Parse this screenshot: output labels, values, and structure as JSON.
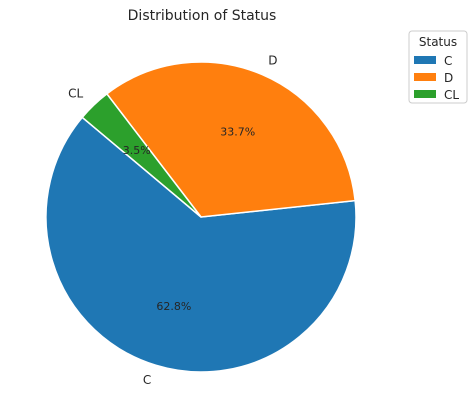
{
  "chart_data": {
    "type": "pie",
    "title": "Distribution of Status",
    "categories": [
      "C",
      "D",
      "CL"
    ],
    "values": [
      62.8,
      33.7,
      3.5
    ],
    "labels": [
      "62.8%",
      "33.7%",
      "3.5%"
    ],
    "colors": [
      "#1f77b4",
      "#ff7f0e",
      "#2ca02c"
    ],
    "start_angle_deg": 140,
    "direction": "counterclockwise",
    "legend": {
      "title": "Status",
      "placement": "top-right",
      "entries": [
        "C",
        "D",
        "CL"
      ]
    }
  }
}
